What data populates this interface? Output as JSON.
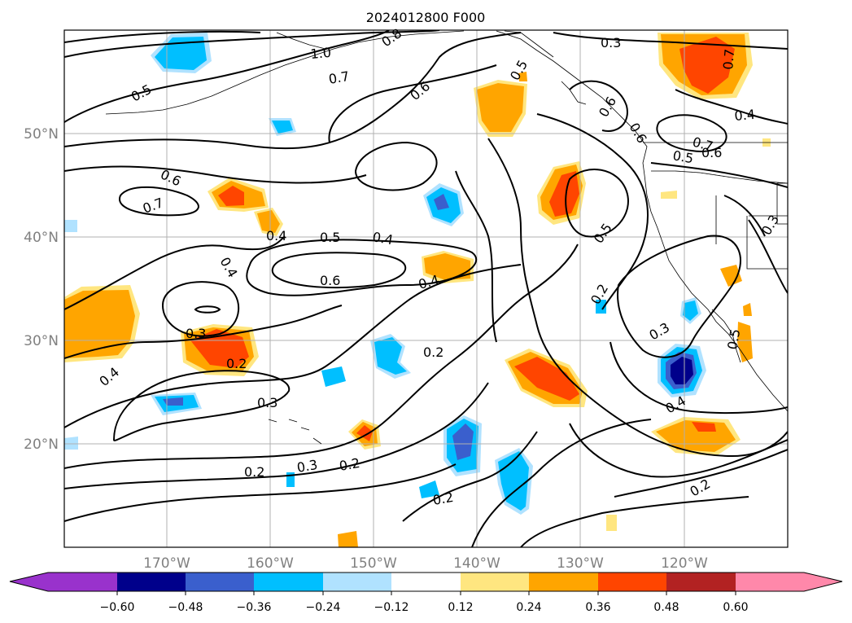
{
  "title": "2024012800 F000",
  "map": {
    "lon_range": [
      -180,
      -110
    ],
    "lat_range": [
      10,
      60
    ],
    "gridlines": true,
    "lon_ticks": [
      "170°W",
      "160°W",
      "150°W",
      "140°W",
      "130°W",
      "120°W"
    ],
    "lat_ticks": [
      "50°N",
      "40°N",
      "30°N",
      "20°N"
    ],
    "contour_labels": [
      "0.5",
      "0.7",
      "0.8",
      "1.0",
      "0.6",
      "0.3",
      "0.7",
      "0.5",
      "0.6",
      "0.6",
      "0.4",
      "0.7",
      "0.5",
      "0.6",
      "0.4",
      "0.5",
      "0.4",
      "0.6",
      "0.7",
      "0.4",
      "0.6",
      "0.4",
      "0.3",
      "0.2",
      "0.2",
      "0.2",
      "0.5",
      "0.3",
      "0.4",
      "0.2",
      "0.3",
      "0.2",
      "0.3",
      "0.4",
      "0.2",
      "0.2",
      "0.5",
      "0.3"
    ]
  },
  "colorbar": {
    "ticks": [
      "−0.60",
      "−0.48",
      "−0.36",
      "−0.24",
      "−0.12",
      "0.12",
      "0.24",
      "0.36",
      "0.48",
      "0.60"
    ],
    "colors": [
      "#9932cc",
      "#00008b",
      "#3a5fcd",
      "#00bfff",
      "#b0e2ff",
      "#ffffff",
      "#ffe680",
      "#ffa500",
      "#ff4500",
      "#b22222",
      "#ff88aa"
    ],
    "extend": "both"
  },
  "colors": {
    "contour": "#000000",
    "coast": "#000000",
    "grid": "#b0b0b0",
    "tick_label": "#808080"
  }
}
